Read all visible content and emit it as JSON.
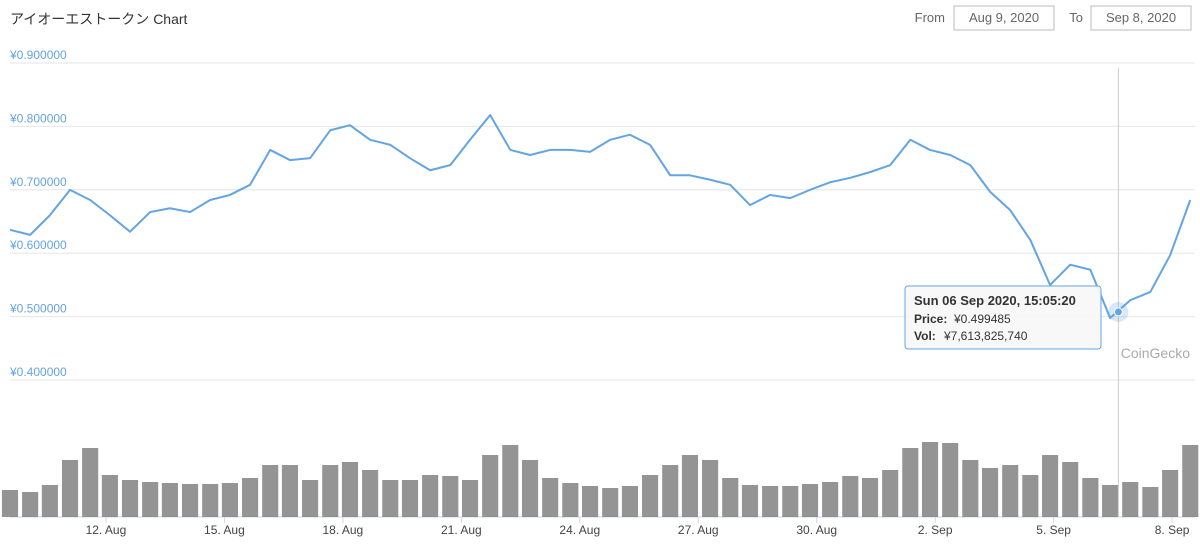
{
  "chart_data": {
    "type": "line",
    "title": "アイオーエストークン Chart",
    "range": {
      "from_label": "From",
      "from": "Aug 9, 2020",
      "to_label": "To",
      "to": "Sep 8, 2020"
    },
    "watermark": "CoinGecko",
    "color": "#63a4e3",
    "volume_color": "#666666",
    "x": [
      9.57,
      10.08,
      10.58,
      11.09,
      11.6,
      12.1,
      12.61,
      13.12,
      13.62,
      14.13,
      14.64,
      15.14,
      15.65,
      16.16,
      16.66,
      17.17,
      17.68,
      18.18,
      18.69,
      19.2,
      19.7,
      20.21,
      20.72,
      21.22,
      21.73,
      22.24,
      22.74,
      23.25,
      23.76,
      24.26,
      24.77,
      25.27,
      25.78,
      26.29,
      26.79,
      27.3,
      27.81,
      28.31,
      28.82,
      29.33,
      29.83,
      30.34,
      30.85,
      31.35,
      31.86,
      32.37,
      32.87,
      33.38,
      33.89,
      34.39,
      34.9,
      35.41,
      35.91,
      36.42,
      36.93,
      37.43,
      37.94,
      38.45,
      38.95,
      39.46
    ],
    "values": [
      0.629,
      0.621,
      0.652,
      0.692,
      0.676,
      0.652,
      0.626,
      0.657,
      0.663,
      0.657,
      0.676,
      0.684,
      0.7,
      0.755,
      0.739,
      0.742,
      0.786,
      0.794,
      0.771,
      0.763,
      0.742,
      0.723,
      0.731,
      0.771,
      0.81,
      0.755,
      0.747,
      0.755,
      0.755,
      0.752,
      0.771,
      0.779,
      0.763,
      0.715,
      0.715,
      0.708,
      0.7,
      0.668,
      0.684,
      0.679,
      0.692,
      0.704,
      0.711,
      0.72,
      0.731,
      0.771,
      0.755,
      0.747,
      0.731,
      0.689,
      0.66,
      0.613,
      0.542,
      0.574,
      0.566,
      0.49,
      0.518,
      0.531,
      0.589,
      0.676
    ],
    "volumes": [
      27,
      25,
      32,
      57,
      69,
      42,
      37,
      35,
      34,
      33,
      33,
      34,
      39,
      52,
      52,
      37,
      52,
      55,
      47,
      37,
      37,
      42,
      41,
      37,
      62,
      72,
      57,
      39,
      34,
      31,
      29,
      31,
      42,
      52,
      62,
      57,
      39,
      32,
      31,
      31,
      33,
      35,
      41,
      39,
      47,
      69,
      75,
      74,
      57,
      49,
      52,
      42,
      62,
      55,
      39,
      32,
      35,
      30,
      47,
      72
    ],
    "vlim": [
      0,
      80
    ],
    "xlim": [
      9.57,
      39.58
    ],
    "xticks": [
      {
        "value": 12,
        "label": "12. Aug"
      },
      {
        "value": 15,
        "label": "15. Aug"
      },
      {
        "value": 18,
        "label": "18. Aug"
      },
      {
        "value": 21,
        "label": "21. Aug"
      },
      {
        "value": 24,
        "label": "24. Aug"
      },
      {
        "value": 27,
        "label": "27. Aug"
      },
      {
        "value": 30,
        "label": "30. Aug"
      },
      {
        "value": 33,
        "label": "2. Sep"
      },
      {
        "value": 36,
        "label": "5. Sep"
      },
      {
        "value": 39,
        "label": "8. Sep"
      }
    ],
    "ylim": [
      0.4,
      0.9
    ],
    "yticks": [
      {
        "value": 0.4,
        "label": "¥0.400000"
      },
      {
        "value": 0.5,
        "label": "¥0.500000"
      },
      {
        "value": 0.6,
        "label": "¥0.600000"
      },
      {
        "value": 0.7,
        "label": "¥0.700000"
      },
      {
        "value": 0.8,
        "label": "¥0.800000"
      },
      {
        "value": 0.9,
        "label": "¥0.900000"
      }
    ],
    "grid": true,
    "tooltip": {
      "x": 37.64,
      "value": 0.499485,
      "date": "Sun 06 Sep 2020, 15:05:20",
      "price_label": "Price:",
      "price": "¥0.499485",
      "vol_label": "Vol:",
      "vol": "¥7,613,825,740"
    }
  }
}
